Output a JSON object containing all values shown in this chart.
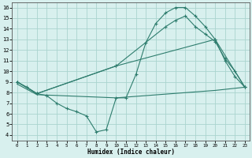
{
  "line1_x": [
    0,
    1,
    2,
    3,
    4,
    5,
    6,
    7,
    8,
    9,
    10,
    11,
    12,
    13,
    14,
    15,
    16,
    17,
    18,
    19,
    20,
    21,
    22,
    23
  ],
  "line1_y": [
    9.0,
    8.5,
    7.9,
    7.7,
    7.0,
    6.5,
    6.2,
    5.8,
    4.3,
    4.5,
    7.5,
    7.5,
    9.7,
    12.7,
    14.5,
    15.5,
    16.0,
    16.0,
    15.2,
    14.2,
    13.0,
    11.0,
    9.5,
    8.5
  ],
  "line2_x": [
    0,
    2,
    10,
    15,
    16,
    17,
    18,
    19,
    20,
    21,
    22,
    23
  ],
  "line2_y": [
    9.0,
    7.9,
    10.5,
    14.2,
    14.8,
    15.2,
    14.2,
    13.5,
    12.8,
    11.2,
    10.0,
    8.5
  ],
  "line3_x": [
    0,
    2,
    10,
    20,
    23
  ],
  "line3_y": [
    8.8,
    7.8,
    7.5,
    8.2,
    8.5
  ],
  "line4_x": [
    0,
    2,
    10,
    20,
    23
  ],
  "line4_y": [
    9.0,
    7.9,
    10.5,
    13.0,
    8.5
  ],
  "color": "#2e7d6e",
  "bg_color": "#d8f0ee",
  "grid_color": "#aad4ce",
  "xlabel": "Humidex (Indice chaleur)",
  "xlim": [
    -0.5,
    23.5
  ],
  "ylim": [
    3.5,
    16.5
  ],
  "xticks": [
    0,
    1,
    2,
    3,
    4,
    5,
    6,
    7,
    8,
    9,
    10,
    11,
    12,
    13,
    14,
    15,
    16,
    17,
    18,
    19,
    20,
    21,
    22,
    23
  ],
  "yticks": [
    4,
    5,
    6,
    7,
    8,
    9,
    10,
    11,
    12,
    13,
    14,
    15,
    16
  ]
}
